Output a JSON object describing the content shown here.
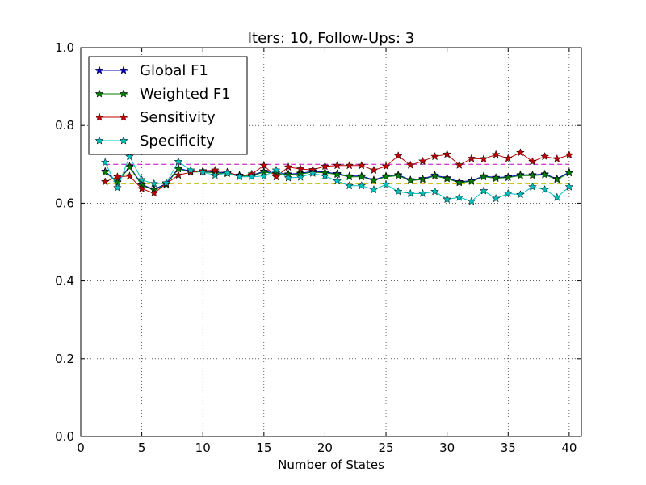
{
  "chart_data": {
    "type": "line",
    "title": "Iters: 10, Follow-Ups: 3",
    "xlabel": "Number of States",
    "ylabel": "",
    "xlim": [
      0,
      41
    ],
    "ylim": [
      0.0,
      1.0
    ],
    "xticks": [
      0,
      5,
      10,
      15,
      20,
      25,
      30,
      35,
      40
    ],
    "xtick_labels": [
      "0",
      "5",
      "10",
      "15",
      "20",
      "25",
      "30",
      "35",
      "40"
    ],
    "yticks": [
      0.0,
      0.2,
      0.4,
      0.6,
      0.8,
      1.0
    ],
    "ytick_labels": [
      "0.0",
      "0.2",
      "0.4",
      "0.6",
      "0.8",
      "1.0"
    ],
    "grid": true,
    "legend_position": "top-left",
    "x": [
      2,
      3,
      4,
      5,
      6,
      7,
      8,
      9,
      10,
      11,
      12,
      13,
      14,
      15,
      16,
      17,
      18,
      19,
      20,
      21,
      22,
      23,
      24,
      25,
      26,
      27,
      28,
      29,
      30,
      31,
      32,
      33,
      34,
      35,
      36,
      37,
      38,
      39,
      40
    ],
    "series": [
      {
        "name": "Global F1",
        "color": "#0000bf",
        "marker": "star",
        "values": [
          0.682,
          0.655,
          0.695,
          0.648,
          0.636,
          0.65,
          0.69,
          0.682,
          0.683,
          0.68,
          0.678,
          0.672,
          0.672,
          0.682,
          0.678,
          0.675,
          0.677,
          0.682,
          0.68,
          0.676,
          0.67,
          0.67,
          0.66,
          0.67,
          0.673,
          0.66,
          0.663,
          0.672,
          0.665,
          0.655,
          0.658,
          0.67,
          0.666,
          0.668,
          0.673,
          0.673,
          0.675,
          0.663,
          0.68
        ]
      },
      {
        "name": "Weighted F1",
        "color": "#007f00",
        "marker": "star",
        "values": [
          0.68,
          0.653,
          0.693,
          0.646,
          0.634,
          0.648,
          0.688,
          0.68,
          0.681,
          0.678,
          0.676,
          0.67,
          0.67,
          0.68,
          0.676,
          0.673,
          0.675,
          0.68,
          0.678,
          0.674,
          0.668,
          0.668,
          0.658,
          0.668,
          0.671,
          0.658,
          0.661,
          0.67,
          0.663,
          0.653,
          0.656,
          0.668,
          0.664,
          0.666,
          0.671,
          0.671,
          0.673,
          0.661,
          0.678
        ]
      },
      {
        "name": "Sensitivity",
        "color": "#bf0000",
        "marker": "star",
        "values": [
          0.655,
          0.668,
          0.67,
          0.637,
          0.626,
          0.65,
          0.672,
          0.68,
          0.683,
          0.685,
          0.68,
          0.67,
          0.675,
          0.697,
          0.668,
          0.693,
          0.688,
          0.686,
          0.695,
          0.697,
          0.697,
          0.697,
          0.685,
          0.695,
          0.722,
          0.698,
          0.708,
          0.72,
          0.726,
          0.698,
          0.715,
          0.714,
          0.725,
          0.715,
          0.73,
          0.707,
          0.72,
          0.714,
          0.724
        ]
      },
      {
        "name": "Specificity",
        "color": "#00bfbf",
        "marker": "star",
        "values": [
          0.705,
          0.64,
          0.72,
          0.66,
          0.65,
          0.652,
          0.707,
          0.685,
          0.68,
          0.672,
          0.678,
          0.668,
          0.668,
          0.67,
          0.685,
          0.665,
          0.667,
          0.677,
          0.67,
          0.657,
          0.645,
          0.645,
          0.635,
          0.648,
          0.63,
          0.625,
          0.625,
          0.63,
          0.61,
          0.615,
          0.605,
          0.632,
          0.612,
          0.625,
          0.622,
          0.642,
          0.635,
          0.615,
          0.642
        ]
      }
    ],
    "reference_lines": [
      {
        "y": 0.7,
        "color": "#bf00bf",
        "style": "dashed",
        "x_range": [
          2,
          40
        ]
      },
      {
        "y": 0.65,
        "color": "#bfbf00",
        "style": "dashed",
        "x_range": [
          2,
          40
        ]
      }
    ]
  }
}
